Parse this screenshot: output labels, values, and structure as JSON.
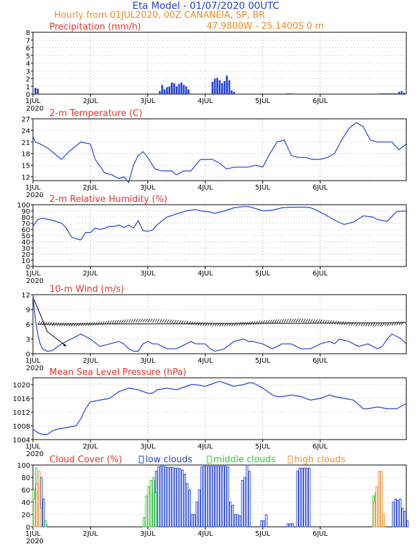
{
  "header": {
    "title": "Eta Model - 01/07/2020 00UTC",
    "subtitle": "Hourly from 01JUL2020, 00Z  CANANEIA, SP, BR",
    "location": "47.9800W - 25.1400S        0  m",
    "title_color": "#1f3fd8",
    "subtitle_color": "#f08a2a"
  },
  "x_axis": {
    "range_hours": [
      0,
      156
    ],
    "ticks": [
      {
        "hour": 0,
        "label": "1JUL"
      },
      {
        "hour": 24,
        "label": "2JUL"
      },
      {
        "hour": 48,
        "label": "3JUL"
      },
      {
        "hour": 72,
        "label": "4JUL"
      },
      {
        "hour": 96,
        "label": "5JUL"
      },
      {
        "hour": 120,
        "label": "6JUL"
      }
    ],
    "year_label": "2020"
  },
  "colors": {
    "line": "#1f3fd8",
    "panel_title": "#e8322a",
    "low": "#1f3fd8",
    "middle": "#2ec82e",
    "high": "#f08a2a"
  },
  "chart_data": [
    {
      "type": "bar",
      "title": "Precipitation (mm/h)",
      "ylim": [
        0,
        8
      ],
      "yticks": [
        0,
        1,
        2,
        3,
        4,
        5,
        6,
        7,
        8
      ],
      "x": [
        1,
        2,
        53,
        54,
        55,
        56,
        57,
        58,
        59,
        60,
        61,
        62,
        63,
        64,
        65,
        75,
        76,
        77,
        78,
        79,
        80,
        81,
        82,
        83,
        84,
        106,
        107,
        108,
        145,
        146,
        147,
        148,
        149,
        150,
        151,
        152,
        153,
        154,
        155
      ],
      "values": [
        0.8,
        0.7,
        0.4,
        1.2,
        0.6,
        0.9,
        1.0,
        1.5,
        1.4,
        1.0,
        1.3,
        1.5,
        1.2,
        1.0,
        0.6,
        1.6,
        2.0,
        2.1,
        1.8,
        1.4,
        1.7,
        2.4,
        1.8,
        0.5,
        0.3,
        0.1,
        0.1,
        0.1,
        0.1,
        0.1,
        0.1,
        0.1,
        0.1,
        0.1,
        0.1,
        0.1,
        0.3,
        0.4,
        0.2
      ]
    },
    {
      "type": "line",
      "title": "2-m Temperature (C)",
      "ylim": [
        11,
        27
      ],
      "yticks": [
        12,
        15,
        18,
        21,
        24,
        27
      ],
      "x": [
        0,
        1,
        3,
        6,
        9,
        12,
        15,
        18,
        20,
        24,
        26,
        30,
        33,
        36,
        38,
        40,
        42,
        44,
        46,
        48,
        51,
        54,
        56,
        58,
        60,
        63,
        66,
        68,
        70,
        72,
        75,
        78,
        81,
        84,
        87,
        90,
        93,
        96,
        99,
        102,
        105,
        108,
        111,
        114,
        117,
        120,
        123,
        126,
        129,
        132,
        135,
        138,
        141,
        144,
        147,
        150,
        153,
        156
      ],
      "values": [
        22.5,
        21,
        20.5,
        19.5,
        18,
        16.5,
        18.5,
        20,
        21,
        20.5,
        16.5,
        13,
        12.5,
        11.5,
        12,
        10.5,
        15,
        17.5,
        18.5,
        17,
        14,
        13.5,
        13.5,
        13.5,
        12.5,
        13.5,
        13.5,
        15,
        16.5,
        16.5,
        16.5,
        15.5,
        14,
        14.5,
        14.5,
        14.5,
        15,
        14.5,
        18,
        21,
        21.5,
        17.5,
        17,
        17,
        16.5,
        16.5,
        17,
        18,
        21.5,
        24.5,
        26,
        25,
        21.5,
        21,
        21,
        21,
        19,
        20.5
      ]
    },
    {
      "type": "line",
      "title": "2-m Relative Humidity (%)",
      "ylim": [
        0,
        100
      ],
      "yticks": [
        0,
        10,
        20,
        30,
        40,
        50,
        60,
        70,
        80,
        90,
        100
      ],
      "x": [
        0,
        2,
        4,
        8,
        12,
        14,
        16,
        18,
        20,
        22,
        24,
        26,
        28,
        30,
        32,
        34,
        36,
        38,
        40,
        42,
        44,
        46,
        48,
        50,
        52,
        56,
        60,
        64,
        68,
        70,
        72,
        74,
        76,
        80,
        84,
        88,
        90,
        92,
        96,
        100,
        104,
        108,
        110,
        112,
        114,
        116,
        118,
        120,
        122,
        126,
        130,
        134,
        138,
        142,
        144,
        148,
        152,
        156
      ],
      "values": [
        65,
        76,
        78,
        75,
        70,
        62,
        48,
        45,
        43,
        55,
        55,
        62,
        60,
        62,
        65,
        65,
        67,
        63,
        67,
        62,
        74,
        58,
        57,
        59,
        68,
        80,
        85,
        90,
        92,
        90,
        89,
        88,
        86,
        90,
        95,
        97,
        97,
        95,
        90,
        91,
        95,
        96,
        96,
        96,
        96,
        95,
        92,
        88,
        84,
        75,
        68,
        72,
        82,
        80,
        76,
        73,
        89,
        90
      ]
    },
    {
      "type": "line",
      "title": "10-m Wind (m/s)",
      "ylim": [
        0,
        12
      ],
      "yticks": [
        0,
        3,
        6,
        9,
        12
      ],
      "x": [
        0,
        1,
        2,
        3,
        4,
        6,
        8,
        12,
        16,
        20,
        22,
        24,
        28,
        32,
        36,
        38,
        40,
        42,
        44,
        46,
        48,
        50,
        52,
        56,
        60,
        64,
        66,
        68,
        72,
        74,
        76,
        80,
        84,
        88,
        90,
        92,
        96,
        100,
        104,
        108,
        110,
        112,
        116,
        120,
        124,
        126,
        128,
        132,
        134,
        136,
        140,
        144,
        146,
        148,
        150,
        152,
        154,
        156
      ],
      "values": [
        12,
        7,
        4,
        2,
        1,
        0.5,
        0.6,
        2,
        3,
        4,
        3.5,
        3,
        1.5,
        2,
        2.5,
        2,
        1,
        0.5,
        0.5,
        2,
        2.5,
        2,
        2,
        1,
        1,
        2,
        2.5,
        2,
        2,
        1,
        0.5,
        1,
        2.5,
        3,
        2.5,
        2.5,
        2,
        1,
        2,
        2,
        1.5,
        1,
        1,
        2,
        2.5,
        2,
        3,
        2.5,
        2,
        1.5,
        2,
        1,
        1.5,
        3,
        4,
        3.5,
        3,
        2
      ]
    },
    {
      "type": "line",
      "title": "Mean Sea Level Pressure (hPa)",
      "ylim": [
        1004,
        1022
      ],
      "yticks": [
        1004,
        1008,
        1012,
        1016,
        1020
      ],
      "x": [
        0,
        2,
        4,
        6,
        8,
        10,
        14,
        18,
        20,
        22,
        24,
        28,
        32,
        36,
        40,
        44,
        48,
        50,
        52,
        56,
        60,
        64,
        66,
        68,
        72,
        74,
        78,
        82,
        84,
        88,
        90,
        92,
        96,
        100,
        102,
        104,
        108,
        112,
        116,
        120,
        124,
        126,
        130,
        134,
        138,
        140,
        144,
        148,
        152,
        156
      ],
      "values": [
        1007,
        1006,
        1005.5,
        1005.5,
        1006.5,
        1007,
        1007.5,
        1008,
        1010,
        1013,
        1015,
        1015.5,
        1016,
        1018,
        1019,
        1018.5,
        1017.5,
        1017.5,
        1018.5,
        1019,
        1018.5,
        1019.5,
        1020,
        1020,
        1019.5,
        1020,
        1021,
        1020,
        1019.5,
        1020,
        1020.5,
        1020.5,
        1019,
        1017,
        1016.5,
        1016.5,
        1017,
        1016.5,
        1015.5,
        1016,
        1017,
        1016.5,
        1016,
        1015.5,
        1013,
        1013,
        1013.5,
        1013,
        1013,
        1014.5
      ]
    },
    {
      "type": "bar",
      "title": "Cloud Cover (%)",
      "legend": [
        "low clouds",
        "middle clouds",
        "high clouds"
      ],
      "ylim": [
        0,
        100
      ],
      "yticks": [
        0,
        20,
        40,
        60,
        80,
        100
      ],
      "series": [
        {
          "name": "low clouds",
          "x": [
            0,
            1,
            2,
            3,
            4,
            5,
            49,
            50,
            51,
            52,
            53,
            54,
            55,
            56,
            57,
            58,
            59,
            60,
            61,
            62,
            63,
            64,
            65,
            66,
            67,
            68,
            69,
            70,
            71,
            72,
            73,
            74,
            75,
            76,
            77,
            78,
            79,
            80,
            81,
            82,
            83,
            84,
            85,
            86,
            87,
            88,
            89,
            90,
            95,
            96,
            97,
            106,
            107,
            108,
            110,
            111,
            112,
            113,
            114,
            115,
            150,
            151,
            152,
            153,
            154,
            155,
            156
          ],
          "values": [
            20,
            40,
            60,
            80,
            45,
            5,
            55,
            75,
            90,
            97,
            98,
            98,
            97,
            96,
            96,
            96,
            95,
            95,
            94,
            92,
            85,
            70,
            60,
            20,
            20,
            40,
            60,
            97,
            98,
            98,
            98,
            98,
            98,
            98,
            98,
            98,
            98,
            98,
            97,
            40,
            35,
            20,
            20,
            18,
            75,
            80,
            100,
            90,
            10,
            10,
            20,
            5,
            5,
            5,
            90,
            95,
            95,
            95,
            95,
            95,
            40,
            45,
            43,
            45,
            30,
            25,
            10
          ]
        },
        {
          "name": "middle clouds",
          "x": [
            0,
            1,
            2,
            3,
            5,
            46,
            47,
            48,
            49,
            50,
            51,
            142,
            143,
            144,
            145
          ],
          "values": [
            60,
            95,
            60,
            30,
            10,
            15,
            50,
            65,
            75,
            80,
            55,
            50,
            55,
            60,
            45
          ]
        },
        {
          "name": "high clouds",
          "x": [
            0,
            1,
            2,
            142,
            143,
            144,
            145,
            146
          ],
          "values": [
            45,
            70,
            90,
            40,
            65,
            90,
            90,
            20
          ]
        }
      ]
    }
  ]
}
